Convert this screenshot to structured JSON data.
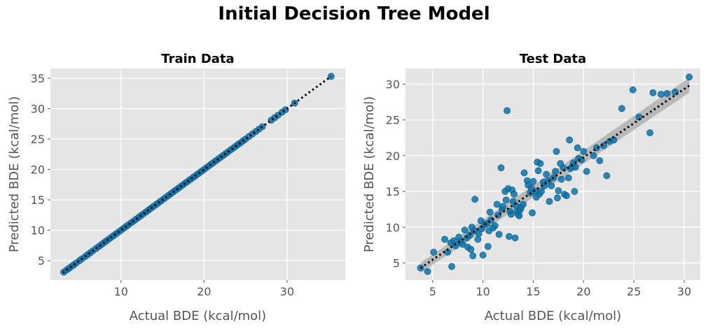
{
  "figure": {
    "title": "Initial Decision Tree Model"
  },
  "chart_data": [
    {
      "type": "scatter",
      "title": "Train Data",
      "xlabel": "Actual BDE (kcal/mol)",
      "ylabel": "Predicted BDE (kcal/mol)",
      "xlim": [
        1.5,
        37
      ],
      "ylim": [
        1.8,
        36.6
      ],
      "xticks": [
        10,
        20,
        30
      ],
      "yticks": [
        5,
        10,
        15,
        20,
        25,
        30,
        35
      ],
      "grid": true,
      "point_color": "#0d72a8",
      "fit_line": {
        "style": "dotted",
        "color": "#000000",
        "x": [
          3,
          35.3
        ],
        "y": [
          3,
          35.3
        ]
      },
      "points": [
        [
          3.1,
          3.1
        ],
        [
          3.4,
          3.4
        ],
        [
          3.7,
          3.7
        ],
        [
          4.0,
          4.0
        ],
        [
          4.3,
          4.3
        ],
        [
          4.6,
          4.6
        ],
        [
          5.0,
          5.0
        ],
        [
          5.3,
          5.3
        ],
        [
          5.7,
          5.7
        ],
        [
          6.0,
          6.0
        ],
        [
          6.3,
          6.3
        ],
        [
          6.6,
          6.6
        ],
        [
          7.0,
          7.0
        ],
        [
          7.3,
          7.3
        ],
        [
          7.6,
          7.6
        ],
        [
          7.9,
          7.9
        ],
        [
          8.2,
          8.2
        ],
        [
          8.5,
          8.5
        ],
        [
          8.8,
          8.8
        ],
        [
          9.1,
          9.1
        ],
        [
          9.4,
          9.4
        ],
        [
          9.7,
          9.7
        ],
        [
          10.0,
          10.0
        ],
        [
          10.3,
          10.3
        ],
        [
          10.6,
          10.6
        ],
        [
          10.9,
          10.9
        ],
        [
          11.2,
          11.2
        ],
        [
          11.5,
          11.5
        ],
        [
          11.8,
          11.8
        ],
        [
          12.1,
          12.1
        ],
        [
          12.4,
          12.4
        ],
        [
          12.7,
          12.7
        ],
        [
          13.0,
          13.0
        ],
        [
          13.3,
          13.3
        ],
        [
          13.6,
          13.6
        ],
        [
          13.9,
          13.9
        ],
        [
          14.2,
          14.2
        ],
        [
          14.5,
          14.5
        ],
        [
          14.8,
          14.8
        ],
        [
          15.1,
          15.1
        ],
        [
          15.4,
          15.4
        ],
        [
          15.7,
          15.7
        ],
        [
          16.0,
          16.0
        ],
        [
          16.3,
          16.3
        ],
        [
          16.6,
          16.6
        ],
        [
          16.9,
          16.9
        ],
        [
          17.2,
          17.2
        ],
        [
          17.5,
          17.5
        ],
        [
          17.8,
          17.8
        ],
        [
          18.1,
          18.1
        ],
        [
          18.4,
          18.4
        ],
        [
          18.7,
          18.7
        ],
        [
          19.0,
          19.0
        ],
        [
          19.3,
          19.3
        ],
        [
          19.6,
          19.6
        ],
        [
          19.9,
          19.9
        ],
        [
          20.2,
          20.2
        ],
        [
          20.5,
          20.5
        ],
        [
          20.8,
          20.8
        ],
        [
          21.1,
          21.1
        ],
        [
          21.4,
          21.4
        ],
        [
          21.7,
          21.7
        ],
        [
          22.0,
          22.0
        ],
        [
          22.3,
          22.3
        ],
        [
          22.6,
          22.6
        ],
        [
          22.9,
          22.9
        ],
        [
          23.2,
          23.2
        ],
        [
          23.5,
          23.5
        ],
        [
          23.8,
          23.8
        ],
        [
          24.1,
          24.1
        ],
        [
          24.4,
          24.4
        ],
        [
          24.7,
          24.7
        ],
        [
          25.0,
          25.0
        ],
        [
          25.4,
          25.4
        ],
        [
          25.8,
          25.8
        ],
        [
          26.2,
          26.2
        ],
        [
          26.6,
          26.6
        ],
        [
          27.0,
          27.0
        ],
        [
          28.1,
          28.1
        ],
        [
          28.5,
          28.5
        ],
        [
          28.9,
          28.9
        ],
        [
          29.4,
          29.4
        ],
        [
          29.8,
          29.8
        ],
        [
          30.9,
          30.9
        ],
        [
          35.3,
          35.3
        ]
      ]
    },
    {
      "type": "scatter",
      "title": "Test Data",
      "xlabel": "Actual BDE (kcal/mol)",
      "ylabel": "Predicted BDE (kcal/mol)",
      "xlim": [
        2.3,
        31.6
      ],
      "ylim": [
        2.6,
        32.2
      ],
      "xticks": [
        5,
        10,
        15,
        20,
        25,
        30
      ],
      "yticks": [
        5,
        10,
        15,
        20,
        25,
        30
      ],
      "grid": true,
      "point_color": "#0d72a8",
      "fit_line": {
        "style": "dotted",
        "color": "#000000",
        "x": [
          3.8,
          30.5
        ],
        "y": [
          4.3,
          29.8
        ]
      },
      "confidence_band": {
        "color": "#b0b0b0",
        "x": [
          3.8,
          30.5
        ],
        "y_low": [
          3.6,
          28.8
        ],
        "y_high": [
          5.0,
          30.9
        ]
      },
      "points": [
        [
          3.8,
          4.3
        ],
        [
          4.5,
          3.8
        ],
        [
          5.1,
          6.5
        ],
        [
          6.2,
          8.3
        ],
        [
          6.5,
          6.5
        ],
        [
          6.8,
          7.8
        ],
        [
          6.9,
          4.5
        ],
        [
          7.1,
          8.1
        ],
        [
          7.3,
          7.4
        ],
        [
          7.6,
          8.6
        ],
        [
          7.8,
          7.9
        ],
        [
          8.0,
          7.6
        ],
        [
          8.2,
          9.6
        ],
        [
          8.4,
          8.5
        ],
        [
          8.5,
          7.2
        ],
        [
          8.7,
          8.9
        ],
        [
          8.8,
          6.9
        ],
        [
          8.9,
          10.0
        ],
        [
          9.0,
          6.0
        ],
        [
          9.1,
          9.5
        ],
        [
          9.2,
          13.9
        ],
        [
          9.5,
          8.3
        ],
        [
          9.6,
          9.1
        ],
        [
          9.8,
          10.9
        ],
        [
          9.9,
          9.8
        ],
        [
          10.0,
          6.1
        ],
        [
          10.2,
          10.4
        ],
        [
          10.4,
          10.5
        ],
        [
          10.5,
          7.3
        ],
        [
          10.6,
          9.5
        ],
        [
          10.7,
          12.1
        ],
        [
          10.8,
          11.0
        ],
        [
          11.0,
          9.9
        ],
        [
          11.2,
          10.2
        ],
        [
          11.4,
          13.2
        ],
        [
          11.5,
          11.7
        ],
        [
          11.6,
          9.0
        ],
        [
          11.8,
          18.3
        ],
        [
          11.9,
          12.5
        ],
        [
          12.0,
          12.9
        ],
        [
          12.2,
          15.0
        ],
        [
          12.3,
          13.8
        ],
        [
          12.4,
          26.3
        ],
        [
          12.5,
          15.4
        ],
        [
          12.6,
          8.7
        ],
        [
          12.7,
          12.2
        ],
        [
          12.8,
          11.8
        ],
        [
          12.9,
          15.2
        ],
        [
          13.0,
          13.6
        ],
        [
          13.1,
          14.6
        ],
        [
          13.2,
          8.5
        ],
        [
          13.3,
          13.0
        ],
        [
          13.4,
          12.2
        ],
        [
          13.5,
          11.8
        ],
        [
          13.6,
          11.6
        ],
        [
          13.7,
          12.4
        ],
        [
          13.8,
          12.8
        ],
        [
          14.0,
          13.2
        ],
        [
          14.1,
          17.6
        ],
        [
          14.4,
          16.5
        ],
        [
          14.5,
          15.9
        ],
        [
          14.7,
          14.8
        ],
        [
          14.8,
          15.5
        ],
        [
          14.9,
          12.0
        ],
        [
          15.0,
          16.4
        ],
        [
          15.2,
          15.0
        ],
        [
          15.3,
          14.2
        ],
        [
          15.4,
          19.1
        ],
        [
          15.5,
          17.9
        ],
        [
          15.6,
          14.6
        ],
        [
          15.7,
          18.9
        ],
        [
          15.8,
          15.0
        ],
        [
          16.0,
          16.3
        ],
        [
          16.1,
          15.8
        ],
        [
          16.3,
          17.4
        ],
        [
          16.5,
          16.5
        ],
        [
          16.6,
          13.6
        ],
        [
          16.8,
          15.8
        ],
        [
          17.0,
          16.9
        ],
        [
          17.2,
          17.8
        ],
        [
          17.3,
          20.6
        ],
        [
          17.4,
          14.1
        ],
        [
          17.5,
          15.1
        ],
        [
          17.7,
          18.9
        ],
        [
          17.8,
          16.7
        ],
        [
          18.0,
          18.3
        ],
        [
          18.1,
          14.6
        ],
        [
          18.3,
          14.4
        ],
        [
          18.5,
          16.9
        ],
        [
          18.6,
          22.2
        ],
        [
          18.7,
          18.2
        ],
        [
          18.9,
          18.5
        ],
        [
          19.0,
          19.0
        ],
        [
          19.1,
          15.0
        ],
        [
          19.2,
          18.4
        ],
        [
          19.4,
          21.1
        ],
        [
          19.5,
          19.6
        ],
        [
          19.8,
          19.4
        ],
        [
          20.0,
          20.6
        ],
        [
          20.3,
          17.8
        ],
        [
          21.0,
          20.0
        ],
        [
          21.3,
          21.1
        ],
        [
          21.6,
          19.3
        ],
        [
          22.0,
          21.4
        ],
        [
          22.3,
          17.2
        ],
        [
          22.6,
          22.0
        ],
        [
          23.0,
          22.2
        ],
        [
          23.8,
          26.6
        ],
        [
          24.9,
          29.2
        ],
        [
          25.5,
          25.4
        ],
        [
          26.6,
          23.2
        ],
        [
          26.9,
          28.8
        ],
        [
          27.7,
          28.6
        ],
        [
          28.3,
          28.7
        ],
        [
          29.1,
          28.9
        ],
        [
          30.5,
          31.0
        ]
      ]
    }
  ]
}
